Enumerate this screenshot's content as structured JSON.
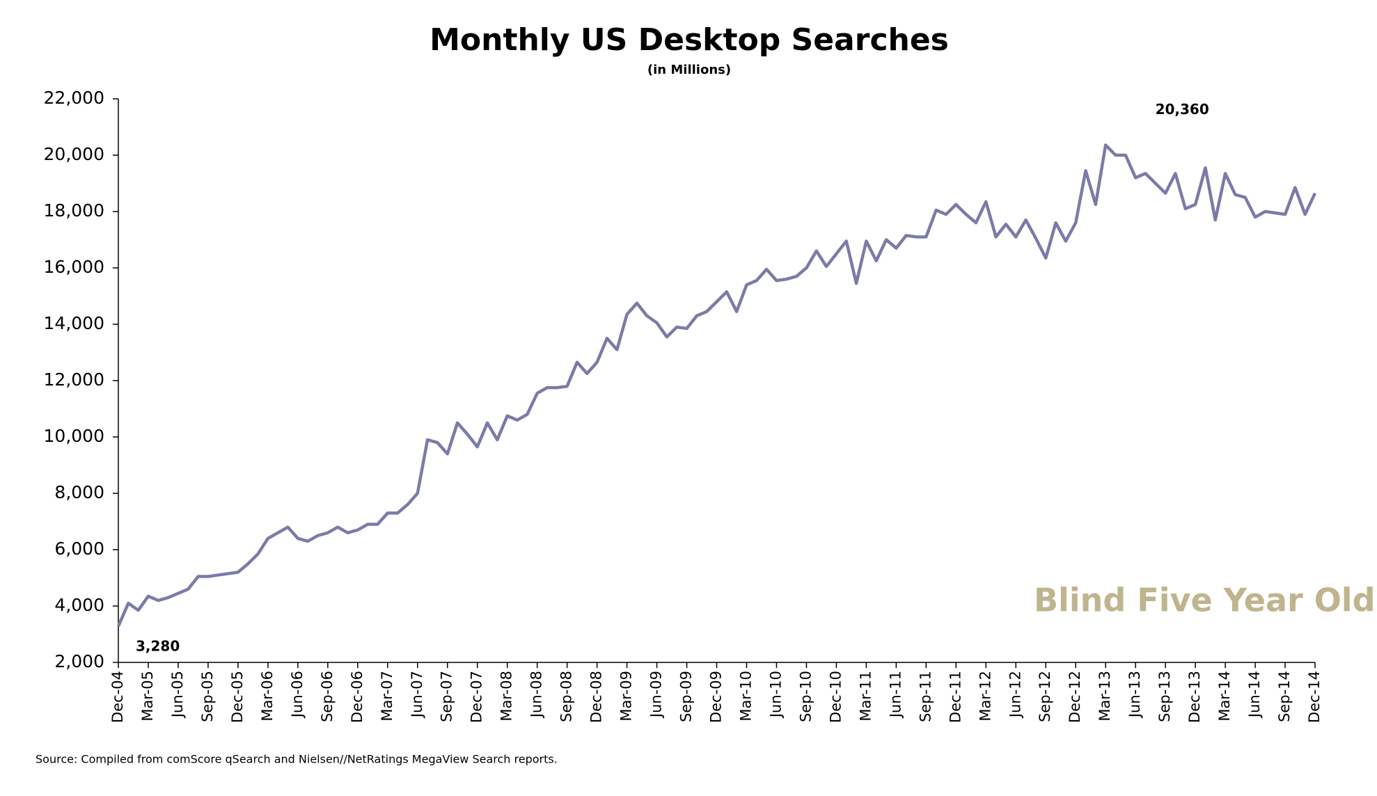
{
  "chart_data": {
    "type": "line",
    "title": "Monthly US Desktop Searches",
    "subtitle": "(in Millions)",
    "source": "Source: Compiled from comScore qSearch and Nielsen//NetRatings MegaView Search reports.",
    "watermark": "Blind Five Year Old",
    "categories": [
      "Dec-04",
      null,
      null,
      "Mar-05",
      null,
      null,
      "Jun-05",
      null,
      null,
      "Sep-05",
      null,
      null,
      "Dec-05",
      null,
      null,
      "Mar-06",
      null,
      null,
      "Jun-06",
      null,
      null,
      "Sep-06",
      null,
      null,
      "Dec-06",
      null,
      null,
      "Mar-07",
      null,
      null,
      "Jun-07",
      null,
      null,
      "Sep-07",
      null,
      null,
      "Dec-07",
      null,
      null,
      "Mar-08",
      null,
      null,
      "Jun-08",
      null,
      null,
      "Sep-08",
      null,
      null,
      "Dec-08",
      null,
      null,
      "Mar-09",
      null,
      null,
      "Jun-09",
      null,
      null,
      "Sep-09",
      null,
      null,
      "Dec-09",
      null,
      null,
      "Mar-10",
      null,
      null,
      "Jun-10",
      null,
      null,
      "Sep-10",
      null,
      null,
      "Dec-10",
      null,
      null,
      "Mar-11",
      null,
      null,
      "Jun-11",
      null,
      null,
      "Sep-11",
      null,
      null,
      "Dec-11",
      null,
      null,
      "Mar-12",
      null,
      null,
      "Jun-12",
      null,
      null,
      "Sep-12",
      null,
      null,
      "Dec-12",
      null,
      null,
      "Mar-13",
      null,
      null,
      "Jun-13",
      null,
      null,
      "Sep-13",
      null,
      null,
      "Dec-13",
      null,
      null,
      "Mar-14",
      null,
      null,
      "Jun-14",
      null,
      null,
      "Sep-14",
      null,
      null,
      "Dec-14"
    ],
    "series": [
      {
        "name": "Monthly US Desktop Searches",
        "color": "#7b7ba8",
        "values": [
          3280,
          4100,
          3850,
          4350,
          4200,
          4300,
          4450,
          4600,
          5050,
          5050,
          5100,
          5150,
          5200,
          5500,
          5850,
          6400,
          6600,
          6800,
          6400,
          6300,
          6500,
          6600,
          6800,
          6600,
          6700,
          6900,
          6900,
          7300,
          7300,
          7600,
          8000,
          9900,
          9800,
          9400,
          10500,
          10100,
          9650,
          10500,
          9900,
          10750,
          10600,
          10800,
          11550,
          11750,
          11750,
          11800,
          12650,
          12250,
          12650,
          13500,
          13100,
          14350,
          14750,
          14300,
          14050,
          13550,
          13900,
          13850,
          14300,
          14450,
          14800,
          15150,
          14450,
          15400,
          15550,
          15950,
          15550,
          15600,
          15700,
          16000,
          16600,
          16050,
          16500,
          16950,
          15450,
          16950,
          16250,
          17000,
          16700,
          17150,
          17100,
          17100,
          18050,
          17900,
          18250,
          17900,
          17600,
          18350,
          17100,
          17550,
          17100,
          17700,
          17050,
          16350,
          17600,
          16950,
          17600,
          19450,
          18250,
          20360,
          20000,
          20000,
          19200,
          19350,
          19000,
          18650,
          19350,
          18100,
          18250,
          19550,
          17700,
          19350,
          18600,
          18500,
          17800,
          18000,
          17950,
          17900,
          18850,
          17900,
          18650
        ],
        "value_labels": [
          "3,280",
          null,
          null,
          null,
          null,
          null,
          null,
          null,
          null,
          null,
          null,
          null,
          null,
          null,
          null,
          null,
          null,
          null,
          null,
          null,
          null,
          null,
          null,
          null,
          null,
          null,
          null,
          null,
          null,
          null,
          null,
          null,
          null,
          null,
          null,
          null,
          null,
          null,
          null,
          null,
          null,
          null,
          null,
          null,
          null,
          null,
          null,
          null,
          null,
          null,
          null,
          null,
          null,
          null,
          null,
          null,
          null,
          null,
          null,
          null,
          null,
          null,
          null,
          null,
          null,
          null,
          null,
          null,
          null,
          null,
          null,
          null,
          null,
          null,
          null,
          null,
          null,
          null,
          null,
          null,
          null,
          null,
          null,
          null,
          null,
          null,
          null,
          null,
          null,
          null,
          null,
          null,
          null,
          null,
          null,
          null,
          null,
          null,
          null,
          "20,360",
          null,
          null,
          null,
          null,
          null,
          null,
          null,
          null,
          null,
          null,
          null,
          null,
          null,
          null,
          null,
          null,
          null,
          null,
          null,
          null,
          null
        ]
      }
    ],
    "ylim": [
      2000,
      22000
    ],
    "yticks": [
      {
        "value": 2000,
        "label": "2,000"
      },
      {
        "value": 4000,
        "label": "4,000"
      },
      {
        "value": 6000,
        "label": "6,000"
      },
      {
        "value": 8000,
        "label": "8,000"
      },
      {
        "value": 10000,
        "label": "10,000"
      },
      {
        "value": 12000,
        "label": "12,000"
      },
      {
        "value": 14000,
        "label": "14,000"
      },
      {
        "value": 16000,
        "label": "16,000"
      },
      {
        "value": 18000,
        "label": "18,000"
      },
      {
        "value": 20000,
        "label": "20,000"
      },
      {
        "value": 22000,
        "label": "22,000"
      }
    ],
    "grid": false
  }
}
